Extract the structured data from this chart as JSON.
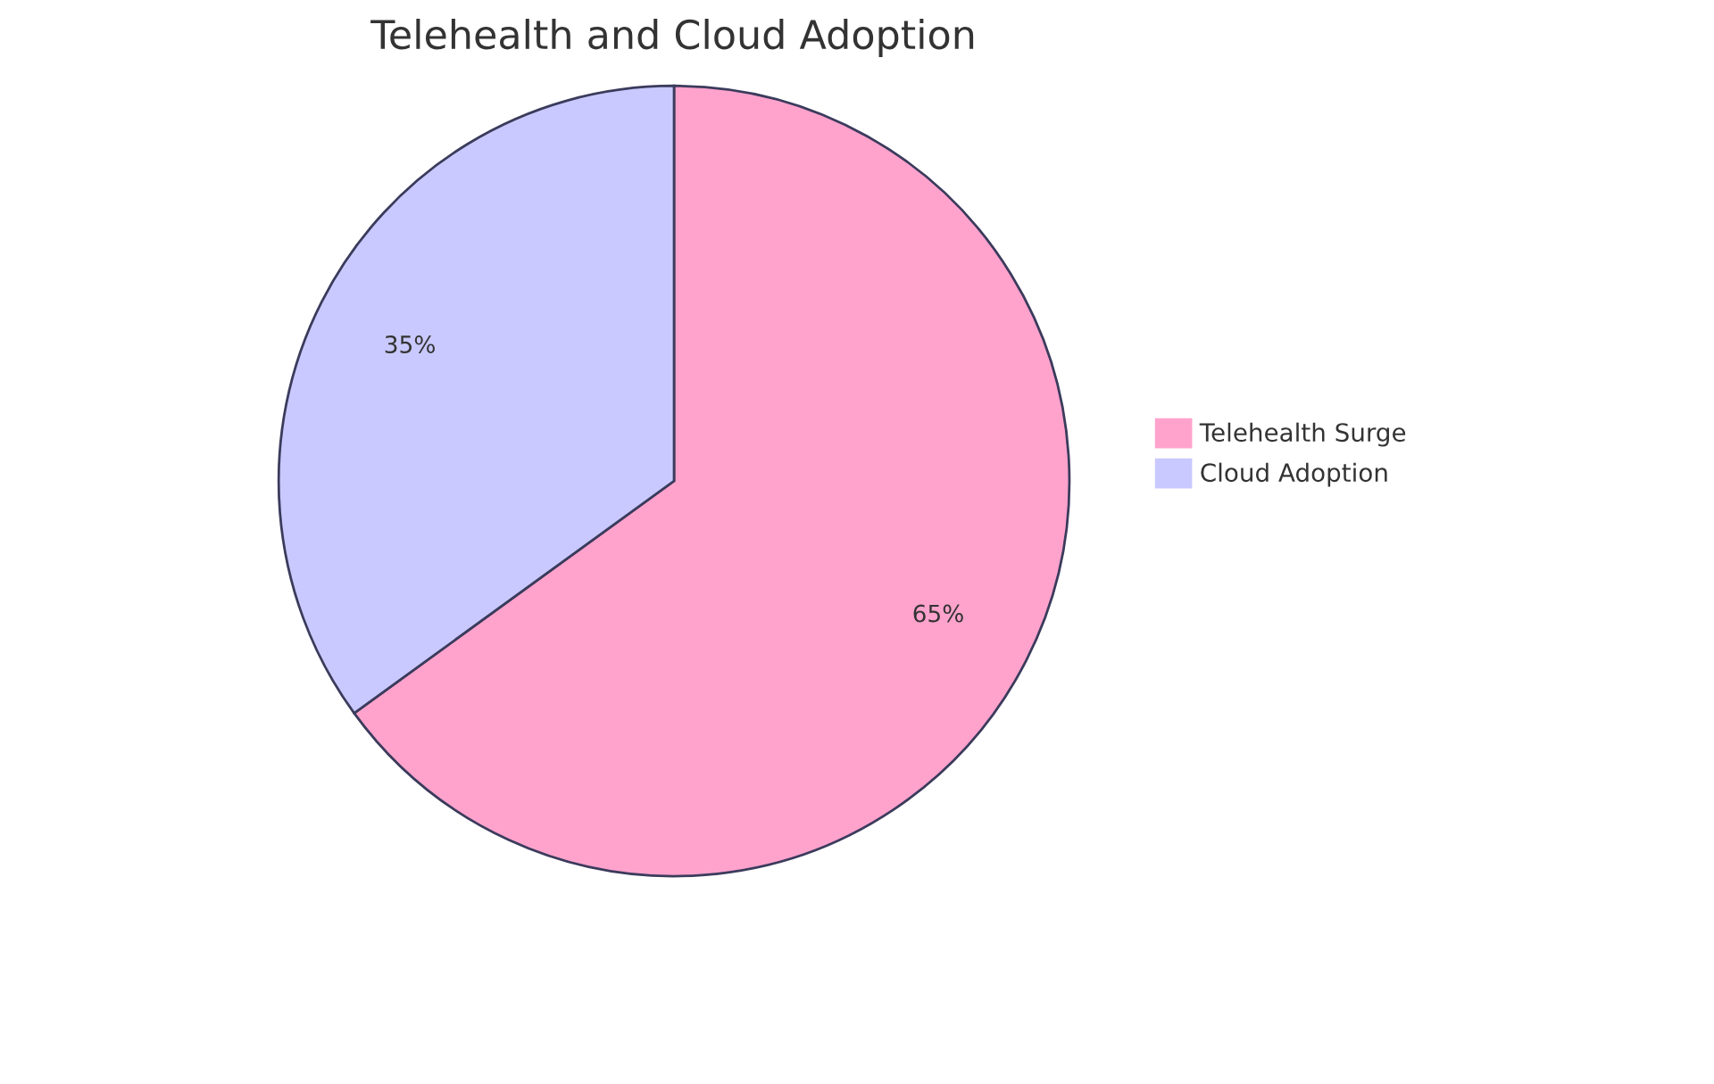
{
  "chart_data": {
    "type": "pie",
    "title": "Telehealth and Cloud Adoption",
    "categories": [
      "Telehealth Surge",
      "Cloud Adoption"
    ],
    "values": [
      65,
      35
    ],
    "value_labels": [
      "65%",
      "35%"
    ],
    "colors": [
      "#ffa3cd",
      "#c9c9ff"
    ],
    "legend": "right"
  }
}
